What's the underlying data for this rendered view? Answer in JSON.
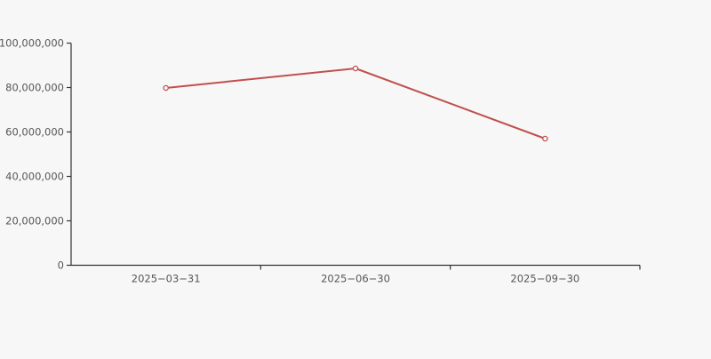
{
  "page": {
    "background_color": "#f7f7f7"
  },
  "chart_data": {
    "type": "line",
    "title": "",
    "xlabel": "",
    "ylabel": "",
    "categories": [
      "2025−03−31",
      "2025−06−30",
      "2025−09−30"
    ],
    "series": [
      {
        "name": "series-1",
        "values": [
          79800000,
          88600000,
          57000000
        ],
        "color": "#c0504d",
        "marker": "hollow-circle"
      }
    ],
    "ylim": [
      0,
      100000000
    ],
    "ytick_interval": 20000000,
    "ytick_labels": [
      "0",
      "20,000,000",
      "40,000,000",
      "60,000,000",
      "80,000,000",
      "100,000,000"
    ],
    "grid": false,
    "legend_position": "none",
    "axis_color": "#333333",
    "tick_color": "#333333",
    "text_color": "#565656"
  }
}
